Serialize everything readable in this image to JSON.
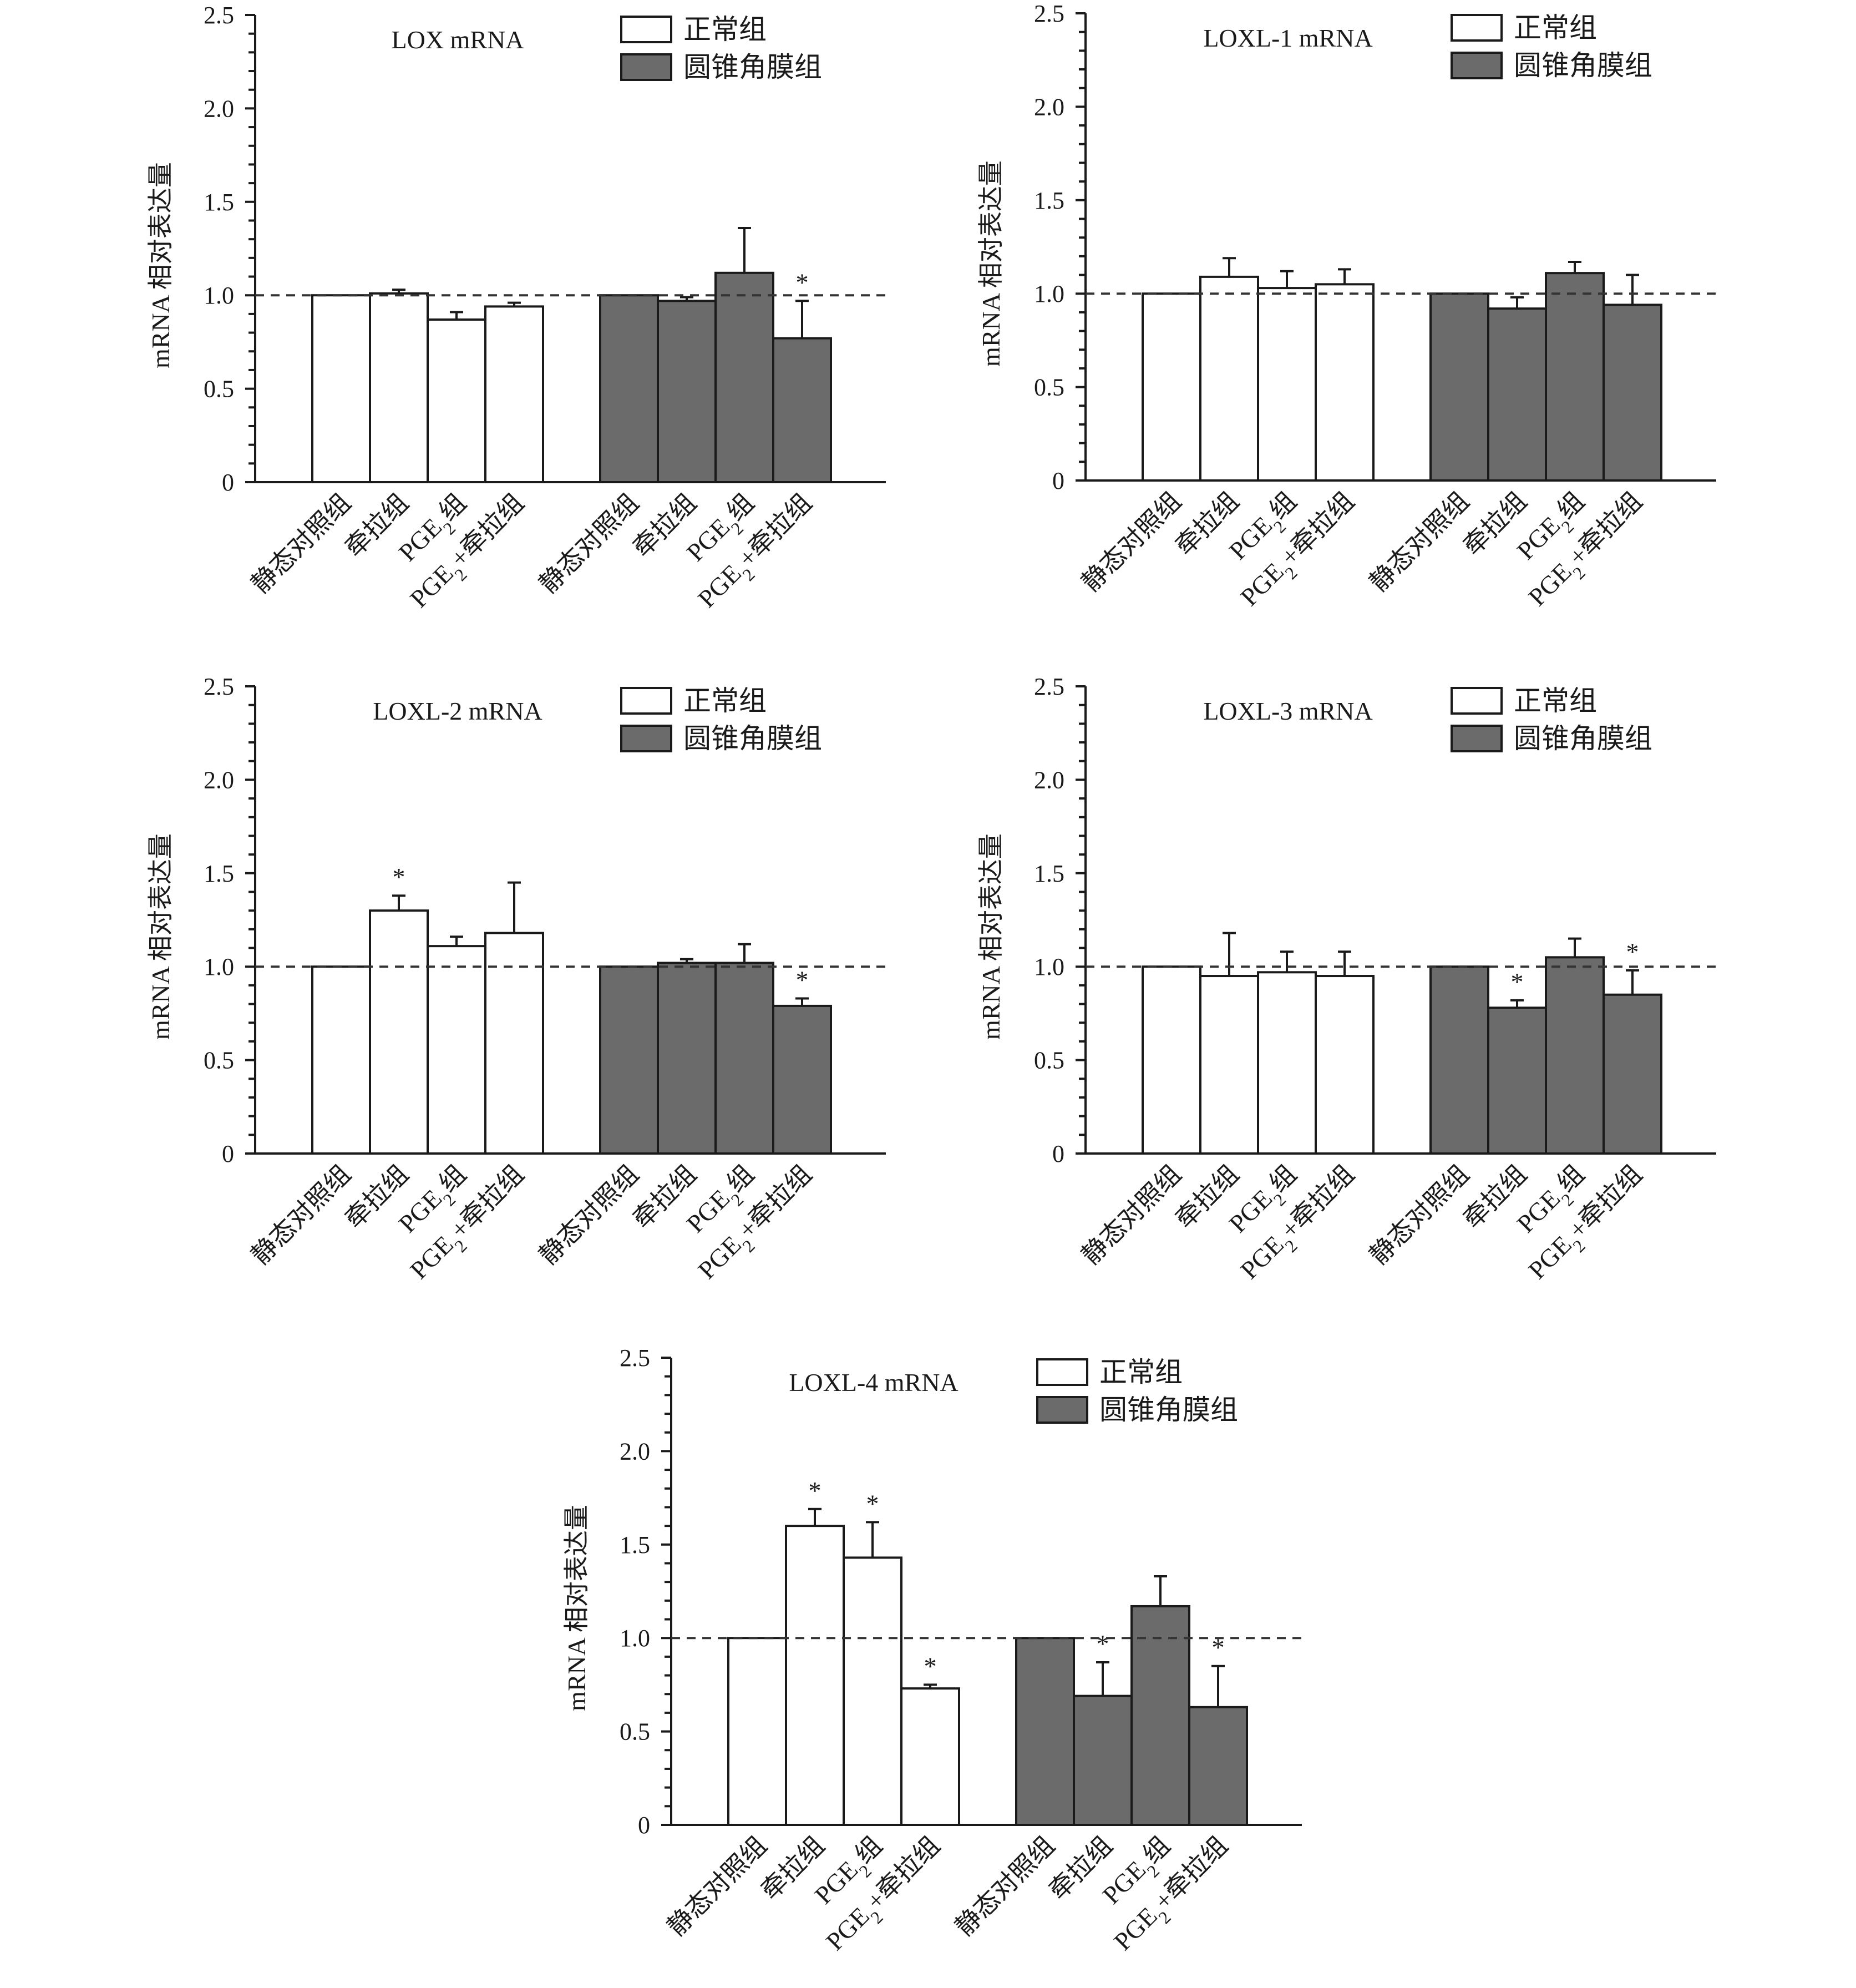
{
  "colors": {
    "normal_fill": "#ffffff",
    "kc_fill": "#6b6b6b",
    "stroke": "#1a1a1a"
  },
  "legend": {
    "normal": "正常组",
    "keratoconus": "圆锥角膜组"
  },
  "chart_data": [
    {
      "type": "bar",
      "title": "LOX mRNA",
      "ylabel": "mRNA 相对表达量",
      "ylim": [
        0,
        2.5
      ],
      "yticks": [
        "0",
        "0.5",
        "1.0",
        "1.5",
        "2.0",
        "2.5"
      ],
      "reference_line": 1.0,
      "categories": [
        "静态对照组",
        "牵拉组",
        "PGE2组",
        "PGE2+牵拉组"
      ],
      "series": [
        {
          "name": "正常组",
          "values": [
            1.0,
            1.01,
            0.87,
            0.94
          ],
          "errors": [
            0,
            0.02,
            0.04,
            0.02
          ],
          "significant": [
            false,
            false,
            false,
            false
          ]
        },
        {
          "name": "圆锥角膜组",
          "values": [
            1.0,
            0.97,
            1.12,
            0.77
          ],
          "errors": [
            0,
            0.02,
            0.24,
            0.2
          ],
          "significant": [
            false,
            false,
            false,
            true
          ]
        }
      ]
    },
    {
      "type": "bar",
      "title": "LOXL-1 mRNA",
      "ylabel": "mRNA 相对表达量",
      "ylim": [
        0,
        2.5
      ],
      "yticks": [
        "0",
        "0.5",
        "1.0",
        "1.5",
        "2.0",
        "2.5"
      ],
      "reference_line": 1.0,
      "categories": [
        "静态对照组",
        "牵拉组",
        "PGE2组",
        "PGE2+牵拉组"
      ],
      "series": [
        {
          "name": "正常组",
          "values": [
            1.0,
            1.09,
            1.03,
            1.05
          ],
          "errors": [
            0,
            0.1,
            0.09,
            0.08
          ],
          "significant": [
            false,
            false,
            false,
            false
          ]
        },
        {
          "name": "圆锥角膜组",
          "values": [
            1.0,
            0.92,
            1.11,
            0.94
          ],
          "errors": [
            0,
            0.06,
            0.06,
            0.16
          ],
          "significant": [
            false,
            false,
            false,
            false
          ]
        }
      ]
    },
    {
      "type": "bar",
      "title": "LOXL-2 mRNA",
      "ylabel": "mRNA 相对表达量",
      "ylim": [
        0,
        2.5
      ],
      "yticks": [
        "0",
        "0.5",
        "1.0",
        "1.5",
        "2.0",
        "2.5"
      ],
      "reference_line": 1.0,
      "categories": [
        "静态对照组",
        "牵拉组",
        "PGE2组",
        "PGE2+牵拉组"
      ],
      "series": [
        {
          "name": "正常组",
          "values": [
            1.0,
            1.3,
            1.11,
            1.18
          ],
          "errors": [
            0,
            0.08,
            0.05,
            0.27
          ],
          "significant": [
            false,
            true,
            false,
            false
          ]
        },
        {
          "name": "圆锥角膜组",
          "values": [
            1.0,
            1.02,
            1.02,
            0.79
          ],
          "errors": [
            0,
            0.02,
            0.1,
            0.04
          ],
          "significant": [
            false,
            false,
            false,
            true
          ]
        }
      ]
    },
    {
      "type": "bar",
      "title": "LOXL-3 mRNA",
      "ylabel": "mRNA 相对表达量",
      "ylim": [
        0,
        2.5
      ],
      "yticks": [
        "0",
        "0.5",
        "1.0",
        "1.5",
        "2.0",
        "2.5"
      ],
      "reference_line": 1.0,
      "categories": [
        "静态对照组",
        "牵拉组",
        "PGE2组",
        "PGE2+牵拉组"
      ],
      "series": [
        {
          "name": "正常组",
          "values": [
            1.0,
            0.95,
            0.97,
            0.95
          ],
          "errors": [
            0,
            0.23,
            0.11,
            0.13
          ],
          "significant": [
            false,
            false,
            false,
            false
          ]
        },
        {
          "name": "圆锥角膜组",
          "values": [
            1.0,
            0.78,
            1.05,
            0.85
          ],
          "errors": [
            0,
            0.04,
            0.1,
            0.13
          ],
          "significant": [
            false,
            true,
            false,
            true
          ]
        }
      ]
    },
    {
      "type": "bar",
      "title": "LOXL-4 mRNA",
      "ylabel": "mRNA 相对表达量",
      "ylim": [
        0,
        2.5
      ],
      "yticks": [
        "0",
        "0.5",
        "1.0",
        "1.5",
        "2.0",
        "2.5"
      ],
      "reference_line": 1.0,
      "categories": [
        "静态对照组",
        "牵拉组",
        "PGE2组",
        "PGE2+牵拉组"
      ],
      "series": [
        {
          "name": "正常组",
          "values": [
            1.0,
            1.6,
            1.43,
            0.73
          ],
          "errors": [
            0,
            0.09,
            0.19,
            0.02
          ],
          "significant": [
            false,
            true,
            true,
            true
          ]
        },
        {
          "name": "圆锥角膜组",
          "values": [
            1.0,
            0.69,
            1.17,
            0.63
          ],
          "errors": [
            0,
            0.18,
            0.16,
            0.22
          ],
          "significant": [
            false,
            true,
            false,
            true
          ]
        }
      ]
    }
  ]
}
